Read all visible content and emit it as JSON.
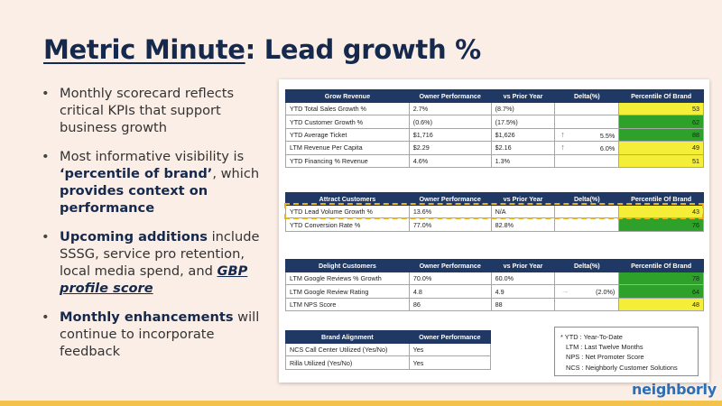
{
  "slide": {
    "title_underlined": "Metric Minute",
    "title_rest": ": Lead growth %",
    "bullets": [
      {
        "plain": "Monthly scorecard reflects critical KPIs that support business growth"
      },
      {
        "pre": "Most informative visibility is ",
        "bold1": "‘percentile of brand’",
        "mid": ", which ",
        "bold2": "provides context on performance"
      },
      {
        "bold": "Upcoming additions",
        "rest": " include SSSG, service pro retention, local media spend, and ",
        "gbp": "GBP profile score"
      },
      {
        "bold": "Monthly enhancements",
        "rest": " will continue to incorporate feedback"
      }
    ],
    "logo": "neighborly"
  },
  "tables": {
    "grow": {
      "headers": [
        "Grow Revenue",
        "Owner Performance",
        "vs Prior Year",
        "Delta(%)",
        "Percentile Of Brand"
      ],
      "rows": [
        {
          "metric": "YTD Total Sales Growth %",
          "owner": "2.7%",
          "prior": "(8.7%)",
          "delta": "",
          "pct": "53",
          "color": "yellow"
        },
        {
          "metric": "YTD Customer Growth %",
          "owner": "(0.6%)",
          "prior": "(17.5%)",
          "delta": "",
          "pct": "62",
          "color": "green"
        },
        {
          "metric": "YTD Average Ticket",
          "owner": "$1,716",
          "prior": "$1,626",
          "delta": "5.5%",
          "arrow": "up",
          "pct": "88",
          "color": "green"
        },
        {
          "metric": "LTM Revenue Per Capita",
          "owner": "$2.29",
          "prior": "$2.16",
          "delta": "6.0%",
          "arrow": "up",
          "pct": "49",
          "color": "yellow"
        },
        {
          "metric": "YTD Financing % Revenue",
          "owner": "4.6%",
          "prior": "1.3%",
          "delta": "",
          "pct": "51",
          "color": "yellow"
        }
      ]
    },
    "attract": {
      "headers": [
        "Attract Customers",
        "Owner Performance",
        "vs Prior Year",
        "Delta(%)",
        "Percentile Of Brand"
      ],
      "rows": [
        {
          "metric": "YTD Lead Volume Growth %",
          "owner": "13.6%",
          "prior": "N/A",
          "delta": "",
          "pct": "43",
          "color": "yellow"
        },
        {
          "metric": "YTD Conversion Rate %",
          "owner": "77.0%",
          "prior": "82.8%",
          "delta": "",
          "pct": "76",
          "color": "green"
        }
      ]
    },
    "delight": {
      "headers": [
        "Delight Customers",
        "Owner Performance",
        "vs Prior Year",
        "Delta(%)",
        "Percentile Of Brand"
      ],
      "rows": [
        {
          "metric": "LTM Google Reviews % Growth",
          "owner": "70.0%",
          "prior": "60.0%",
          "delta": "",
          "pct": "78",
          "color": "green"
        },
        {
          "metric": "LTM Google Review Rating",
          "owner": "4.8",
          "prior": "4.9",
          "delta": "(2.0%)",
          "arrow": "right",
          "pct": "64",
          "color": "green"
        },
        {
          "metric": "LTM NPS Score",
          "owner": "86",
          "prior": "88",
          "delta": "",
          "pct": "48",
          "color": "yellow"
        }
      ]
    },
    "brand": {
      "headers": [
        "Brand Alignment",
        "Owner Performance"
      ],
      "rows": [
        {
          "metric": "NCS Call Center Utilized (Yes/No)",
          "owner": "Yes"
        },
        {
          "metric": "Rilla Utilized (Yes/No)",
          "owner": "Yes"
        }
      ]
    }
  },
  "legend": [
    "* YTD : Year-To-Date",
    "LTM : Last Twelve Months",
    "NPS : Net Promoter Score",
    "NCS : Neighborly Customer Solutions"
  ],
  "colors": {
    "header": "#1f3864",
    "yellow": "#f5ee38",
    "green": "#2ea12a",
    "arrow_up": "#2aa02a",
    "arrow_right": "#f0c419",
    "highlight": "#e8b21b"
  }
}
